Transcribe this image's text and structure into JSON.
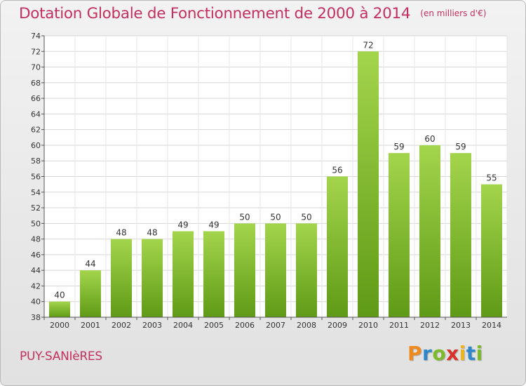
{
  "chart_data": {
    "type": "bar",
    "title": "Dotation Globale de Fonctionnement de 2000 à 2014",
    "unit_note": "(en milliers d'€)",
    "categories": [
      "2000",
      "2001",
      "2002",
      "2003",
      "2004",
      "2005",
      "2006",
      "2007",
      "2008",
      "2009",
      "2010",
      "2011",
      "2012",
      "2013",
      "2014"
    ],
    "values": [
      40,
      44,
      48,
      48,
      49,
      49,
      50,
      50,
      50,
      56,
      72,
      59,
      60,
      59,
      55
    ],
    "ylim": [
      38,
      74
    ],
    "yticks": [
      38,
      40,
      42,
      44,
      46,
      48,
      50,
      52,
      54,
      56,
      58,
      60,
      62,
      64,
      66,
      68,
      70,
      72,
      74
    ],
    "grid": true,
    "bar_color_top": "#a3d54c",
    "bar_color_bottom": "#5f9a16"
  },
  "commune": "PUY-SANIèRES",
  "logo": {
    "letters": [
      "P",
      "r",
      "o",
      "x",
      "i",
      "t",
      "i"
    ],
    "colors": [
      "#f08a1c",
      "#2f87c9",
      "#7cba2b",
      "#d9322b",
      "#f0b51c",
      "#2f87c9",
      "#7cba2b"
    ]
  }
}
